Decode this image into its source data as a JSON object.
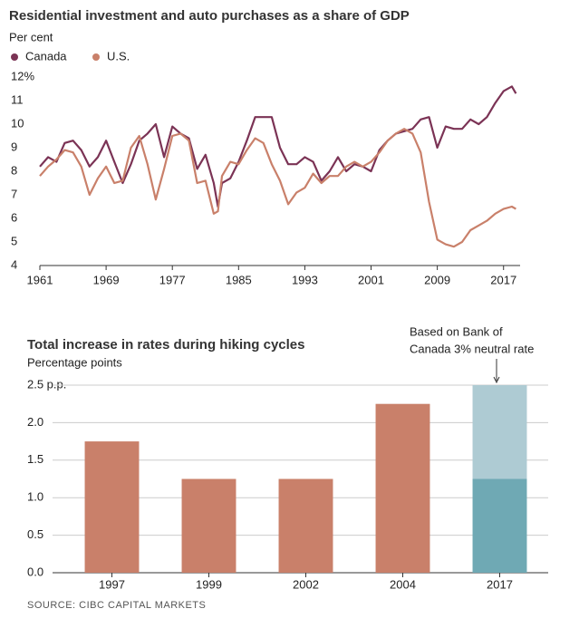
{
  "chart_data": [
    {
      "type": "line",
      "title": "Residential investment and auto purchases as a share of GDP",
      "subtitle": "Per cent",
      "legend": "top-left",
      "x": [
        1961,
        1962,
        1963,
        1964,
        1965,
        1966,
        1967,
        1968,
        1969,
        1970,
        1971,
        1972,
        1973,
        1974,
        1975,
        1976,
        1977,
        1978,
        1979,
        1980,
        1981,
        1982,
        1982.5,
        1983,
        1984,
        1985,
        1986,
        1987,
        1988,
        1989,
        1990,
        1991,
        1992,
        1993,
        1994,
        1995,
        1996,
        1997,
        1998,
        1999,
        2000,
        2001,
        2002,
        2003,
        2004,
        2005,
        2006,
        2007,
        2008,
        2009,
        2010,
        2011,
        2012,
        2013,
        2014,
        2015,
        2016,
        2017,
        2018,
        2018.5
      ],
      "series": [
        {
          "name": "Canada",
          "color": "#7b3355",
          "values": [
            8.2,
            8.6,
            8.4,
            9.2,
            9.3,
            8.9,
            8.2,
            8.6,
            9.3,
            8.4,
            7.5,
            8.3,
            9.3,
            9.6,
            10.0,
            8.6,
            9.9,
            9.6,
            9.4,
            8.1,
            8.7,
            7.5,
            6.5,
            7.5,
            7.7,
            8.4,
            9.3,
            10.3,
            10.3,
            10.3,
            9.0,
            8.3,
            8.3,
            8.6,
            8.4,
            7.6,
            8.0,
            8.6,
            8.0,
            8.3,
            8.2,
            8.0,
            8.9,
            9.3,
            9.6,
            9.7,
            9.8,
            10.2,
            10.3,
            9.0,
            9.9,
            9.8,
            9.8,
            10.2,
            10.0,
            10.3,
            10.9,
            11.4,
            11.6,
            11.3
          ]
        },
        {
          "name": "U.S.",
          "color": "#c9806a",
          "values": [
            7.8,
            8.2,
            8.5,
            8.9,
            8.8,
            8.2,
            7.0,
            7.7,
            8.2,
            7.5,
            7.6,
            9.0,
            9.5,
            8.3,
            6.8,
            8.1,
            9.5,
            9.6,
            9.3,
            7.5,
            7.6,
            6.2,
            6.3,
            7.8,
            8.4,
            8.3,
            8.9,
            9.4,
            9.2,
            8.3,
            7.6,
            6.6,
            7.1,
            7.3,
            7.9,
            7.5,
            7.8,
            7.8,
            8.2,
            8.4,
            8.2,
            8.4,
            8.8,
            9.3,
            9.6,
            9.8,
            9.6,
            8.8,
            6.7,
            5.1,
            4.9,
            4.8,
            5.0,
            5.5,
            5.7,
            5.9,
            6.2,
            6.4,
            6.5,
            6.4
          ]
        }
      ],
      "xlim": [
        1961,
        2019
      ],
      "xticks": [
        1961,
        1969,
        1977,
        1985,
        1993,
        2001,
        2009,
        2017
      ],
      "ylim": [
        4,
        12
      ],
      "yticks": [
        4,
        5,
        6,
        7,
        8,
        9,
        10,
        11,
        {
          "value": 12,
          "label": "12%"
        }
      ],
      "grid": false
    },
    {
      "type": "bar",
      "stacked": true,
      "title": "Total increase in rates during hiking cycles",
      "subtitle": "Percentage points",
      "annotation": [
        "Based on Bank of",
        "Canada 3% neutral rate"
      ],
      "categories": [
        "1997",
        "1999",
        "2002",
        "2004",
        "2017"
      ],
      "series": [
        {
          "colors": [
            "#c9806a",
            "#c9806a",
            "#c9806a",
            "#c9806a",
            "#6fa9b4"
          ],
          "values": [
            1.75,
            1.25,
            1.25,
            2.25,
            1.25
          ]
        },
        {
          "colors": [
            null,
            null,
            null,
            null,
            "#aecbd3"
          ],
          "values": [
            null,
            null,
            null,
            null,
            1.25
          ]
        }
      ],
      "ylim": [
        0,
        2.5
      ],
      "yticks": [
        {
          "value": 0,
          "label": "0.0"
        },
        0.5,
        {
          "value": 1,
          "label": "1.0"
        },
        1.5,
        {
          "value": 2,
          "label": "2.0"
        },
        {
          "value": 2.5,
          "label": "2.5 p.p."
        }
      ],
      "grid": true
    }
  ],
  "source": "SOURCE: CIBC CAPITAL MARKETS"
}
